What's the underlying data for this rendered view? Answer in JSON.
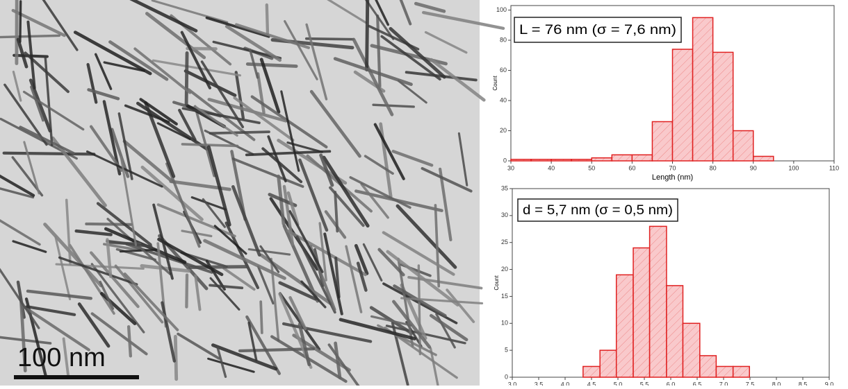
{
  "image": {
    "scale_bar": "100 nm"
  },
  "chart_data": [
    {
      "type": "histogram",
      "annotation": "L = 76 nm (σ = 7,6 nm)",
      "x_label": "Length (nm)",
      "y_label": "Count",
      "bins": [
        30,
        35,
        40,
        45,
        50,
        55,
        60,
        65,
        70,
        75,
        80,
        85,
        90,
        95
      ],
      "counts": [
        1,
        1,
        1,
        1,
        2,
        4,
        4,
        26,
        74,
        95,
        72,
        20,
        3
      ],
      "color": "#e02020",
      "fill": "#f9c9cb",
      "xlim": [
        30,
        110
      ],
      "xticks": [
        30,
        40,
        50,
        60,
        70,
        80,
        90,
        100,
        110
      ],
      "ylim": [
        0,
        103
      ],
      "yticks": [
        0,
        20,
        40,
        60,
        80,
        100
      ]
    },
    {
      "type": "histogram",
      "annotation": "d = 5,7 nm (σ = 0,5 nm)",
      "x_label": "Diameter (nm)",
      "y_label": "Count",
      "bins": [
        4.34,
        4.66,
        4.97,
        5.29,
        5.6,
        5.92,
        6.23,
        6.55,
        6.86,
        7.18,
        7.49
      ],
      "counts": [
        2,
        5,
        19,
        24,
        28,
        17,
        10,
        4,
        2,
        2
      ],
      "color": "#e02020",
      "fill": "#f9c9cb",
      "xlim": [
        3,
        9
      ],
      "xticks": [
        {
          "value": 3,
          "label": "3,0"
        },
        {
          "value": 3.5,
          "label": "3,5"
        },
        {
          "value": 4,
          "label": "4,0"
        },
        {
          "value": 4.5,
          "label": "4,5"
        },
        {
          "value": 5,
          "label": "5,0"
        },
        {
          "value": 5.5,
          "label": "5,5"
        },
        {
          "value": 6,
          "label": "6,0"
        },
        {
          "value": 6.5,
          "label": "6,5"
        },
        {
          "value": 7,
          "label": "7,0"
        },
        {
          "value": 7.5,
          "label": "7,5"
        },
        {
          "value": 8,
          "label": "8,0"
        },
        {
          "value": 8.5,
          "label": "8,5"
        },
        {
          "value": 9,
          "label": "9,0"
        }
      ],
      "ylim": [
        0,
        35
      ],
      "yticks": [
        0,
        5,
        10,
        15,
        20,
        25,
        30,
        35
      ]
    }
  ]
}
